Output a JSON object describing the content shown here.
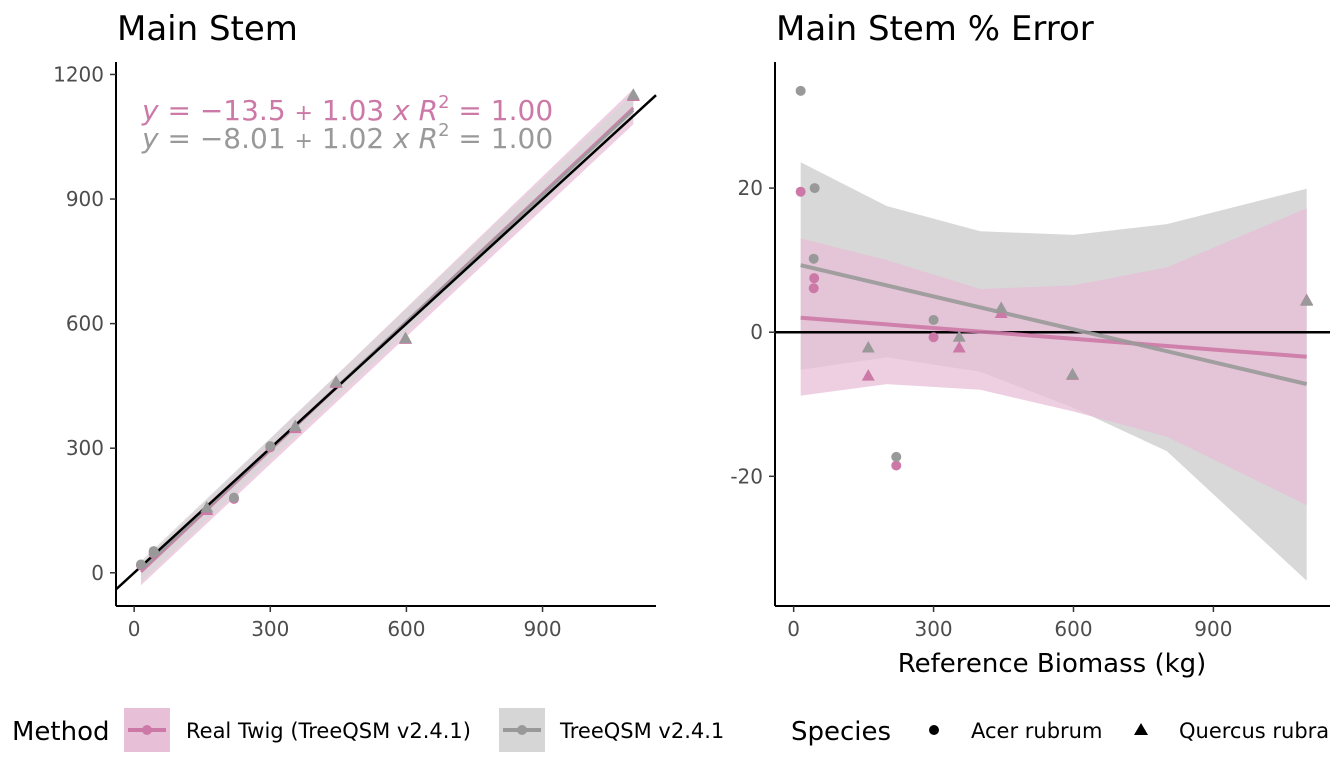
{
  "colors": {
    "real_twig": "#CC79A7",
    "real_twig_band": "#E7BFD7",
    "treeqsm": "#999999",
    "treeqsm_band": "#D6D6D6",
    "overlap_band": "#C8B4C2",
    "axis": "#000000",
    "tick_text": "#4d4d4d"
  },
  "legend": {
    "method_title": "Method",
    "method_items": [
      "Real Twig (TreeQSM v2.4.1)",
      "TreeQSM v2.4.1"
    ],
    "species_title": "Species",
    "species_items": [
      "Acer rubrum",
      "Quercus rubra"
    ],
    "species_shapes": [
      "circle-icon",
      "triangle-icon"
    ]
  },
  "chart_data": [
    {
      "type": "scatter",
      "title": "Main Stem",
      "xlabel": "",
      "ylabel": "",
      "xlim": [
        -40,
        1150
      ],
      "ylim": [
        -80,
        1230
      ],
      "xticks": [
        0,
        300,
        600,
        900
      ],
      "yticks": [
        0,
        300,
        600,
        900,
        1200
      ],
      "reference_line": {
        "intercept": 0,
        "slope": 1
      },
      "equations": [
        {
          "series": "Real Twig (TreeQSM v2.4.1)",
          "lhs": "y",
          "intercept": "−13.5",
          "plus": "+",
          "slope": "1.03",
          "xvar": "x",
          "r2": "R",
          "r2sup": "2",
          "r2eq": "= 1.00"
        },
        {
          "series": "TreeQSM v2.4.1",
          "lhs": "y",
          "intercept": "−8.01",
          "plus": "+",
          "slope": "1.02",
          "xvar": "x",
          "r2": "R",
          "r2sup": "2",
          "r2eq": "= 1.00"
        }
      ],
      "series": [
        {
          "name": "Real Twig (TreeQSM v2.4.1)",
          "fit": {
            "intercept": -13.5,
            "slope": 1.03,
            "x_range": [
              15,
              1100
            ]
          },
          "band": [
            [
              15,
              -30,
              22
            ],
            [
              1100,
              1080,
              1165
            ]
          ],
          "points": [
            {
              "x": 15,
              "y": 18,
              "species": "Acer rubrum"
            },
            {
              "x": 43,
              "y": 47,
              "species": "Acer rubrum"
            },
            {
              "x": 44,
              "y": 45,
              "species": "Acer rubrum"
            },
            {
              "x": 160,
              "y": 150,
              "species": "Quercus rubra"
            },
            {
              "x": 220,
              "y": 178,
              "species": "Acer rubrum"
            },
            {
              "x": 300,
              "y": 302,
              "species": "Acer rubrum"
            },
            {
              "x": 355,
              "y": 347,
              "species": "Quercus rubra"
            },
            {
              "x": 445,
              "y": 456,
              "species": "Quercus rubra"
            },
            {
              "x": 598,
              "y": 562,
              "species": "Quercus rubra"
            },
            {
              "x": 1100,
              "y": 1147,
              "species": "Quercus rubra"
            }
          ]
        },
        {
          "name": "TreeQSM v2.4.1",
          "fit": {
            "intercept": -8.01,
            "slope": 1.02,
            "x_range": [
              15,
              1100
            ]
          },
          "band": [
            [
              15,
              -22,
              28
            ],
            [
              1100,
              1095,
              1155
            ]
          ],
          "points": [
            {
              "x": 15,
              "y": 20,
              "species": "Acer rubrum"
            },
            {
              "x": 43,
              "y": 52,
              "species": "Acer rubrum"
            },
            {
              "x": 44,
              "y": 48,
              "species": "Acer rubrum"
            },
            {
              "x": 160,
              "y": 156,
              "species": "Quercus rubra"
            },
            {
              "x": 220,
              "y": 181,
              "species": "Acer rubrum"
            },
            {
              "x": 300,
              "y": 305,
              "species": "Acer rubrum"
            },
            {
              "x": 355,
              "y": 352,
              "species": "Quercus rubra"
            },
            {
              "x": 445,
              "y": 459,
              "species": "Quercus rubra"
            },
            {
              "x": 598,
              "y": 564,
              "species": "Quercus rubra"
            },
            {
              "x": 1100,
              "y": 1150,
              "species": "Quercus rubra"
            }
          ]
        }
      ]
    },
    {
      "type": "scatter",
      "title": "Main Stem % Error",
      "xlabel": "Reference Biomass (kg)",
      "ylabel": "",
      "xlim": [
        -40,
        1150
      ],
      "ylim": [
        -38,
        37.5
      ],
      "xticks": [
        0,
        300,
        600,
        900
      ],
      "yticks": [
        -20,
        0,
        20
      ],
      "ytick_labels": [
        "-20",
        "0",
        "20"
      ],
      "reference_line": {
        "y": 0
      },
      "series": [
        {
          "name": "Real Twig (TreeQSM v2.4.1)",
          "fit": {
            "x0": 15,
            "y0": 2.0,
            "x1": 1100,
            "y1": -3.4
          },
          "band": [
            [
              15,
              -8.8,
              13.0
            ],
            [
              200,
              -7.2,
              10.0
            ],
            [
              400,
              -8.0,
              6.0
            ],
            [
              600,
              -11.0,
              6.5
            ],
            [
              800,
              -14.5,
              9.0
            ],
            [
              1100,
              -24.0,
              17.2
            ]
          ],
          "points": [
            {
              "x": 15,
              "y": 19.5,
              "species": "Acer rubrum"
            },
            {
              "x": 44,
              "y": 7.5,
              "species": "Acer rubrum"
            },
            {
              "x": 43,
              "y": 6.1,
              "species": "Acer rubrum"
            },
            {
              "x": 160,
              "y": -6.1,
              "species": "Quercus rubra"
            },
            {
              "x": 220,
              "y": -18.5,
              "species": "Acer rubrum"
            },
            {
              "x": 300,
              "y": -0.7,
              "species": "Acer rubrum"
            },
            {
              "x": 355,
              "y": -2.2,
              "species": "Quercus rubra"
            },
            {
              "x": 445,
              "y": 2.6,
              "species": "Quercus rubra"
            },
            {
              "x": 598,
              "y": -6.0,
              "species": "Quercus rubra"
            },
            {
              "x": 1100,
              "y": 4.4,
              "species": "Quercus rubra"
            }
          ]
        },
        {
          "name": "TreeQSM v2.4.1",
          "fit": {
            "x0": 15,
            "y0": 9.3,
            "x1": 1100,
            "y1": -7.2
          },
          "band": [
            [
              15,
              -5.2,
              23.6
            ],
            [
              200,
              -3.5,
              17.5
            ],
            [
              400,
              -5.5,
              14.0
            ],
            [
              600,
              -10.5,
              13.5
            ],
            [
              800,
              -16.5,
              15.0
            ],
            [
              1100,
              -34.5,
              19.9
            ]
          ],
          "points": [
            {
              "x": 15,
              "y": 33.5,
              "species": "Acer rubrum"
            },
            {
              "x": 45,
              "y": 20.0,
              "species": "Acer rubrum"
            },
            {
              "x": 43,
              "y": 10.2,
              "species": "Acer rubrum"
            },
            {
              "x": 160,
              "y": -2.2,
              "species": "Quercus rubra"
            },
            {
              "x": 220,
              "y": -17.3,
              "species": "Acer rubrum"
            },
            {
              "x": 300,
              "y": 1.7,
              "species": "Acer rubrum"
            },
            {
              "x": 355,
              "y": -0.7,
              "species": "Quercus rubra"
            },
            {
              "x": 445,
              "y": 3.3,
              "species": "Quercus rubra"
            },
            {
              "x": 598,
              "y": -5.9,
              "species": "Quercus rubra"
            },
            {
              "x": 1100,
              "y": 4.3,
              "species": "Quercus rubra"
            }
          ]
        }
      ]
    }
  ]
}
